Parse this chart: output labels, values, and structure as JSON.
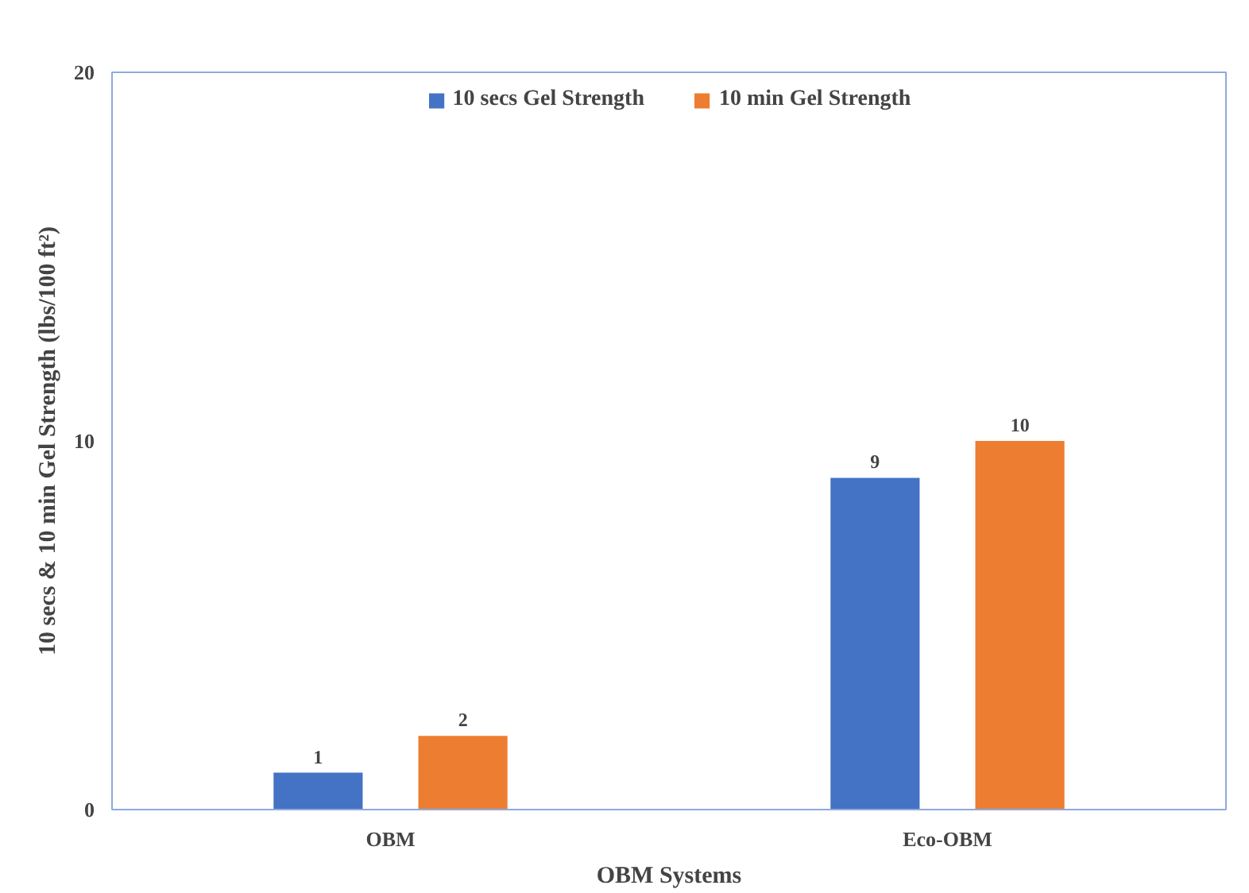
{
  "chart_data": {
    "type": "bar",
    "xlabel": "OBM Systems",
    "ylabel": "10 secs & 10 min Gel Strength (lbs/100 ft²)",
    "categories": [
      "OBM",
      "Eco-OBM"
    ],
    "series": [
      {
        "name": "10 secs Gel Strength",
        "color": "#4472c4",
        "values": [
          1,
          9
        ]
      },
      {
        "name": "10 min Gel Strength",
        "color": "#ed7d31",
        "values": [
          2,
          10
        ]
      }
    ],
    "ylim": [
      0,
      20
    ],
    "yticks": [
      0,
      10,
      20
    ],
    "grid": false,
    "legend": "top",
    "data_labels": true
  }
}
